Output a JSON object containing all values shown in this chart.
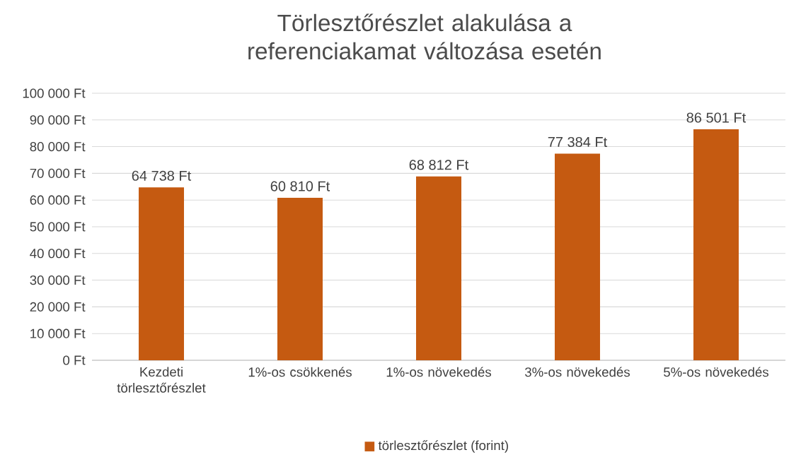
{
  "chart_data": {
    "type": "bar",
    "title": "Törlesztőrészlet alakulása a referenciakamat változása esetén",
    "categories": [
      "Kezdeti törlesztőrészlet",
      "1%-os csökkenés",
      "1%-os növekedés",
      "3%-os növekedés",
      "5%-os növekedés"
    ],
    "series": [
      {
        "name": "törlesztőrészlet (forint)",
        "color": "#c55a11",
        "values": [
          64738,
          60810,
          68812,
          77384,
          86501
        ],
        "value_labels": [
          "64 738 Ft",
          "60 810 Ft",
          "68 812 Ft",
          "77 384 Ft",
          "86 501 Ft"
        ]
      }
    ],
    "ylim": [
      0,
      100000
    ],
    "yticks": [
      {
        "value": 0,
        "label": "0 Ft"
      },
      {
        "value": 10000,
        "label": "10 000 Ft"
      },
      {
        "value": 20000,
        "label": "20 000 Ft"
      },
      {
        "value": 30000,
        "label": "30 000 Ft"
      },
      {
        "value": 40000,
        "label": "40 000 Ft"
      },
      {
        "value": 50000,
        "label": "50 000 Ft"
      },
      {
        "value": 60000,
        "label": "60 000 Ft"
      },
      {
        "value": 70000,
        "label": "70 000 Ft"
      },
      {
        "value": 80000,
        "label": "80 000 Ft"
      },
      {
        "value": 90000,
        "label": "90 000 Ft"
      },
      {
        "value": 100000,
        "label": "100 000 Ft"
      }
    ],
    "grid": "y",
    "legend": "bottom"
  }
}
